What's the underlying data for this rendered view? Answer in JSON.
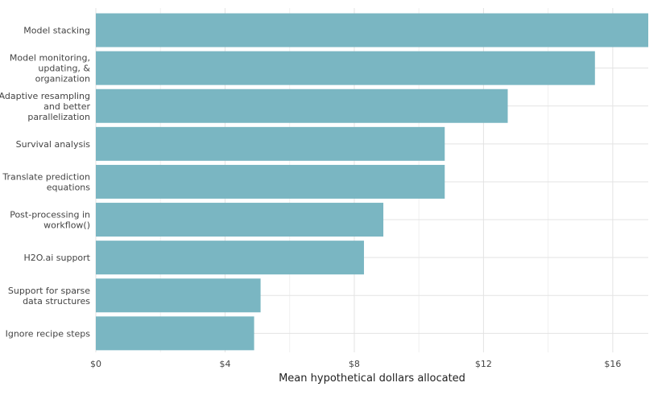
{
  "colors": {
    "bar": "#7ab6c2",
    "grid_major": "#e3e3e3",
    "grid_minor": "#f0f0f0",
    "text": "#444444"
  },
  "chart_data": {
    "type": "bar",
    "orientation": "horizontal",
    "title": "",
    "xlabel": "Mean hypothetical dollars allocated",
    "ylabel": "",
    "xlim": [
      0,
      17.1
    ],
    "x_ticks": [
      0,
      4,
      8,
      12,
      16
    ],
    "x_tick_labels": [
      "$0",
      "$4",
      "$8",
      "$12",
      "$16"
    ],
    "grid": true,
    "categories": [
      [
        "Model stacking"
      ],
      [
        "Model monitoring,",
        "updating, &",
        "organization"
      ],
      [
        "Adaptive resampling",
        "and better",
        "parallelization"
      ],
      [
        "Survival analysis"
      ],
      [
        "Translate prediction",
        "equations"
      ],
      [
        "Post-processing in",
        "workflow()"
      ],
      [
        "H2O.ai support"
      ],
      [
        "Support for sparse",
        "data structures"
      ],
      [
        "Ignore recipe steps"
      ]
    ],
    "values": [
      17.1,
      15.45,
      12.75,
      10.8,
      10.8,
      8.9,
      8.3,
      5.1,
      4.9
    ]
  }
}
